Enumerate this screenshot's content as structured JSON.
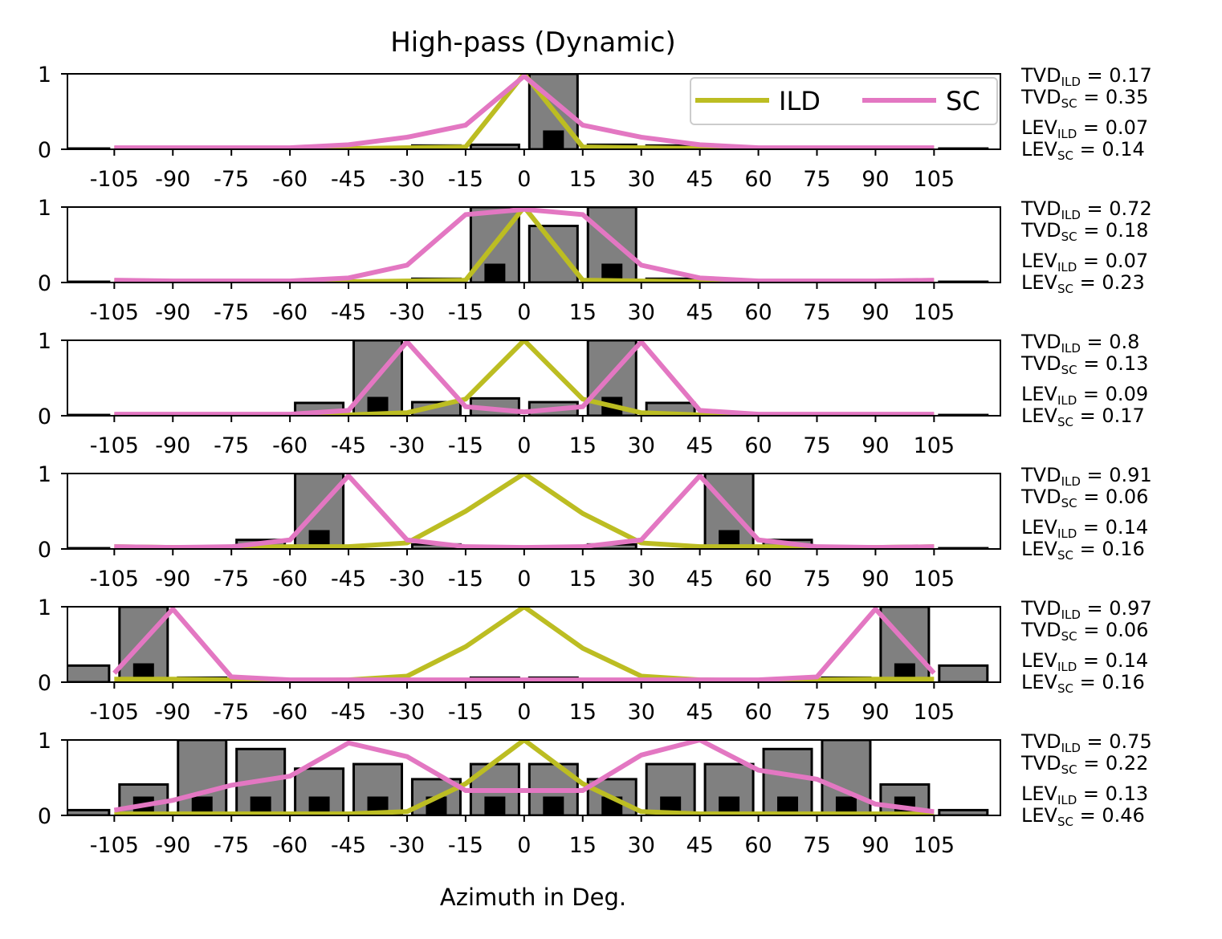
{
  "chart_data": {
    "type": "bar",
    "title": "High-pass (Dynamic)",
    "xlabel": "Azimuth in Deg.",
    "ylabel": "",
    "categories": [
      -105,
      -90,
      -75,
      -60,
      -45,
      -30,
      -15,
      0,
      15,
      30,
      45,
      60,
      75,
      90,
      105
    ],
    "x_tick_labels": [
      "-105",
      "-90",
      "-75",
      "-60",
      "-45",
      "-30",
      "-15",
      "0",
      "15",
      "30",
      "45",
      "60",
      "75",
      "90",
      "105"
    ],
    "bar_x": [
      -112.5,
      -97.5,
      -82.5,
      -67.5,
      -52.5,
      -37.5,
      -22.5,
      -7.5,
      7.5,
      22.5,
      37.5,
      52.5,
      67.5,
      82.5,
      97.5,
      112.5
    ],
    "xlim": [
      -117,
      122
    ],
    "ylim": [
      0,
      1
    ],
    "y_ticks": [
      0,
      1
    ],
    "y_tick_labels": [
      "0",
      "1"
    ],
    "legend": {
      "location": "top-right",
      "entries": [
        "ILD",
        "SC"
      ]
    },
    "colors": {
      "ILD": "#bcbd22",
      "SC": "#e377c2",
      "bar_fill": "#808080",
      "bar_inner": "#000000"
    },
    "panels": [
      {
        "bars": [
          0.01,
          0,
          0,
          0,
          0,
          0,
          0.05,
          0.06,
          1.0,
          0.06,
          0.05,
          0,
          0,
          0,
          0,
          0.01
        ],
        "inner_bars": [
          0,
          0,
          0,
          0,
          0,
          0,
          0,
          0,
          0.25,
          0,
          0,
          0,
          0,
          0,
          0,
          0
        ],
        "series": [
          {
            "name": "ILD",
            "values": [
              0.01,
              0.01,
              0.01,
              0.01,
              0.01,
              0.02,
              0.03,
              1.0,
              0.03,
              0.02,
              0.01,
              0.01,
              0.01,
              0.01,
              0.01
            ]
          },
          {
            "name": "SC",
            "values": [
              0.02,
              0.02,
              0.02,
              0.02,
              0.06,
              0.16,
              0.32,
              0.97,
              0.32,
              0.16,
              0.06,
              0.02,
              0.02,
              0.02,
              0.02
            ]
          }
        ],
        "annotations": [
          {
            "main": "TVD",
            "sub": "ILD",
            "value": "0.17"
          },
          {
            "main": "TVD",
            "sub": "SC",
            "value": "0.35"
          },
          {
            "main": "LEV",
            "sub": "ILD",
            "value": "0.07"
          },
          {
            "main": "LEV",
            "sub": "SC",
            "value": "0.14"
          }
        ]
      },
      {
        "bars": [
          0.01,
          0,
          0,
          0,
          0,
          0,
          0.05,
          1.0,
          0.75,
          1.0,
          0.05,
          0,
          0,
          0,
          0,
          0.01
        ],
        "inner_bars": [
          0,
          0,
          0,
          0,
          0,
          0,
          0,
          0.25,
          0,
          0.25,
          0,
          0,
          0,
          0,
          0,
          0
        ],
        "series": [
          {
            "name": "ILD",
            "values": [
              0.02,
              0.01,
              0.01,
              0.01,
              0.01,
              0.02,
              0.03,
              1.0,
              0.03,
              0.02,
              0.01,
              0.01,
              0.01,
              0.01,
              0.02
            ]
          },
          {
            "name": "SC",
            "values": [
              0.03,
              0.02,
              0.02,
              0.02,
              0.06,
              0.23,
              0.9,
              0.97,
              0.9,
              0.23,
              0.06,
              0.02,
              0.02,
              0.02,
              0.03
            ]
          }
        ],
        "annotations": [
          {
            "main": "TVD",
            "sub": "ILD",
            "value": "0.72"
          },
          {
            "main": "TVD",
            "sub": "SC",
            "value": "0.18"
          },
          {
            "main": "LEV",
            "sub": "ILD",
            "value": "0.07"
          },
          {
            "main": "LEV",
            "sub": "SC",
            "value": "0.23"
          }
        ]
      },
      {
        "bars": [
          0.01,
          0,
          0,
          0,
          0.17,
          1.0,
          0.18,
          0.23,
          0.18,
          1.0,
          0.17,
          0,
          0,
          0,
          0,
          0.01
        ],
        "inner_bars": [
          0,
          0,
          0,
          0,
          0,
          0.25,
          0,
          0,
          0,
          0.25,
          0,
          0,
          0,
          0,
          0,
          0
        ],
        "series": [
          {
            "name": "ILD",
            "values": [
              0.01,
              0.01,
              0.01,
              0.01,
              0.01,
              0.04,
              0.22,
              1.0,
              0.22,
              0.04,
              0.01,
              0.01,
              0.01,
              0.01,
              0.01
            ]
          },
          {
            "name": "SC",
            "values": [
              0.02,
              0.02,
              0.02,
              0.02,
              0.07,
              0.98,
              0.12,
              0.05,
              0.12,
              0.98,
              0.07,
              0.02,
              0.02,
              0.02,
              0.02
            ]
          }
        ],
        "annotations": [
          {
            "main": "TVD",
            "sub": "ILD",
            "value": "0.8"
          },
          {
            "main": "TVD",
            "sub": "SC",
            "value": "0.13"
          },
          {
            "main": "LEV",
            "sub": "ILD",
            "value": "0.09"
          },
          {
            "main": "LEV",
            "sub": "SC",
            "value": "0.17"
          }
        ]
      },
      {
        "bars": [
          0.01,
          0,
          0,
          0.12,
          1.0,
          0,
          0.06,
          0,
          0,
          0.06,
          0,
          1.0,
          0.12,
          0,
          0,
          0.01
        ],
        "inner_bars": [
          0,
          0,
          0,
          0,
          0.25,
          0,
          0,
          0,
          0,
          0,
          0,
          0.25,
          0,
          0,
          0,
          0
        ],
        "series": [
          {
            "name": "ILD",
            "values": [
              0.03,
              0.02,
              0.02,
              0.03,
              0.03,
              0.08,
              0.5,
              1.0,
              0.47,
              0.08,
              0.03,
              0.03,
              0.02,
              0.02,
              0.03
            ]
          },
          {
            "name": "SC",
            "values": [
              0.03,
              0.02,
              0.03,
              0.12,
              0.97,
              0.12,
              0.03,
              0.02,
              0.03,
              0.12,
              0.97,
              0.12,
              0.03,
              0.02,
              0.03
            ]
          }
        ],
        "annotations": [
          {
            "main": "TVD",
            "sub": "ILD",
            "value": "0.91"
          },
          {
            "main": "TVD",
            "sub": "SC",
            "value": "0.06"
          },
          {
            "main": "LEV",
            "sub": "ILD",
            "value": "0.14"
          },
          {
            "main": "LEV",
            "sub": "SC",
            "value": "0.16"
          }
        ]
      },
      {
        "bars": [
          0.22,
          1.0,
          0.06,
          0,
          0,
          0,
          0,
          0.06,
          0.06,
          0,
          0,
          0,
          0,
          0.06,
          1.0,
          0.22
        ],
        "inner_bars": [
          0,
          0.25,
          0,
          0,
          0,
          0,
          0,
          0,
          0,
          0,
          0,
          0,
          0,
          0,
          0.25,
          0
        ],
        "series": [
          {
            "name": "ILD",
            "values": [
              0.04,
              0.04,
              0.03,
              0.02,
              0.03,
              0.08,
              0.47,
              1.0,
              0.45,
              0.08,
              0.03,
              0.02,
              0.03,
              0.04,
              0.04
            ]
          },
          {
            "name": "SC",
            "values": [
              0.12,
              0.97,
              0.07,
              0.03,
              0.03,
              0.03,
              0.03,
              0.03,
              0.03,
              0.03,
              0.03,
              0.03,
              0.07,
              0.97,
              0.12
            ]
          }
        ],
        "annotations": [
          {
            "main": "TVD",
            "sub": "ILD",
            "value": "0.97"
          },
          {
            "main": "TVD",
            "sub": "SC",
            "value": "0.06"
          },
          {
            "main": "LEV",
            "sub": "ILD",
            "value": "0.14"
          },
          {
            "main": "LEV",
            "sub": "SC",
            "value": "0.16"
          }
        ]
      },
      {
        "bars": [
          0.07,
          0.41,
          1.0,
          0.88,
          0.62,
          0.68,
          0.48,
          0.68,
          0.68,
          0.48,
          0.68,
          0.68,
          0.88,
          1.0,
          0.41,
          0.07
        ],
        "inner_bars": [
          0,
          0.25,
          0.25,
          0.25,
          0.25,
          0.25,
          0.25,
          0.25,
          0.25,
          0.25,
          0.25,
          0.25,
          0.25,
          0.25,
          0.25,
          0
        ],
        "series": [
          {
            "name": "ILD",
            "values": [
              0.02,
              0.02,
              0.02,
              0.02,
              0.02,
              0.05,
              0.42,
              1.0,
              0.42,
              0.05,
              0.02,
              0.02,
              0.02,
              0.02,
              0.02
            ]
          },
          {
            "name": "SC",
            "values": [
              0.07,
              0.2,
              0.4,
              0.52,
              0.96,
              0.78,
              0.33,
              0.33,
              0.33,
              0.8,
              1.0,
              0.6,
              0.48,
              0.15,
              0.05
            ]
          }
        ],
        "annotations": [
          {
            "main": "TVD",
            "sub": "ILD",
            "value": "0.75"
          },
          {
            "main": "TVD",
            "sub": "SC",
            "value": "0.22"
          },
          {
            "main": "LEV",
            "sub": "ILD",
            "value": "0.13"
          },
          {
            "main": "LEV",
            "sub": "SC",
            "value": "0.46"
          }
        ]
      }
    ]
  }
}
